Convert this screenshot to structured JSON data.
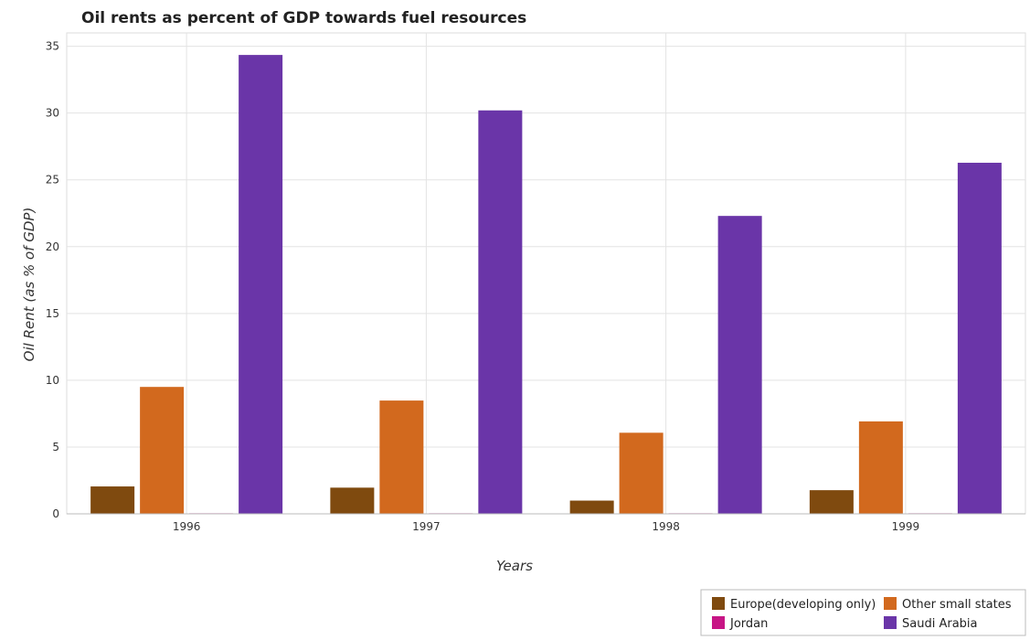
{
  "chart_data": {
    "type": "bar",
    "title": "Oil rents as percent of GDP towards fuel resources",
    "xlabel": "Years",
    "ylabel": "Oil Rent (as % of GDP)",
    "categories": [
      "1996",
      "1997",
      "1998",
      "1999"
    ],
    "ylim": [
      0,
      36
    ],
    "yticks": [
      0,
      5,
      10,
      15,
      20,
      25,
      30,
      35
    ],
    "grid": true,
    "legend_position": "bottom-right",
    "series": [
      {
        "name": "Europe(developing only)",
        "color": "#7f4a0f",
        "values": [
          2.05,
          1.96,
          0.99,
          1.77
        ]
      },
      {
        "name": "Other small states",
        "color": "#d2691e",
        "values": [
          9.5,
          8.48,
          6.07,
          6.92
        ]
      },
      {
        "name": "Jordan",
        "color": "#c71585",
        "values": [
          0.003,
          0.002,
          0.002,
          0.002
        ]
      },
      {
        "name": "Saudi Arabia",
        "color": "#6a35a8",
        "values": [
          34.35,
          30.2,
          22.3,
          26.28
        ]
      }
    ]
  }
}
